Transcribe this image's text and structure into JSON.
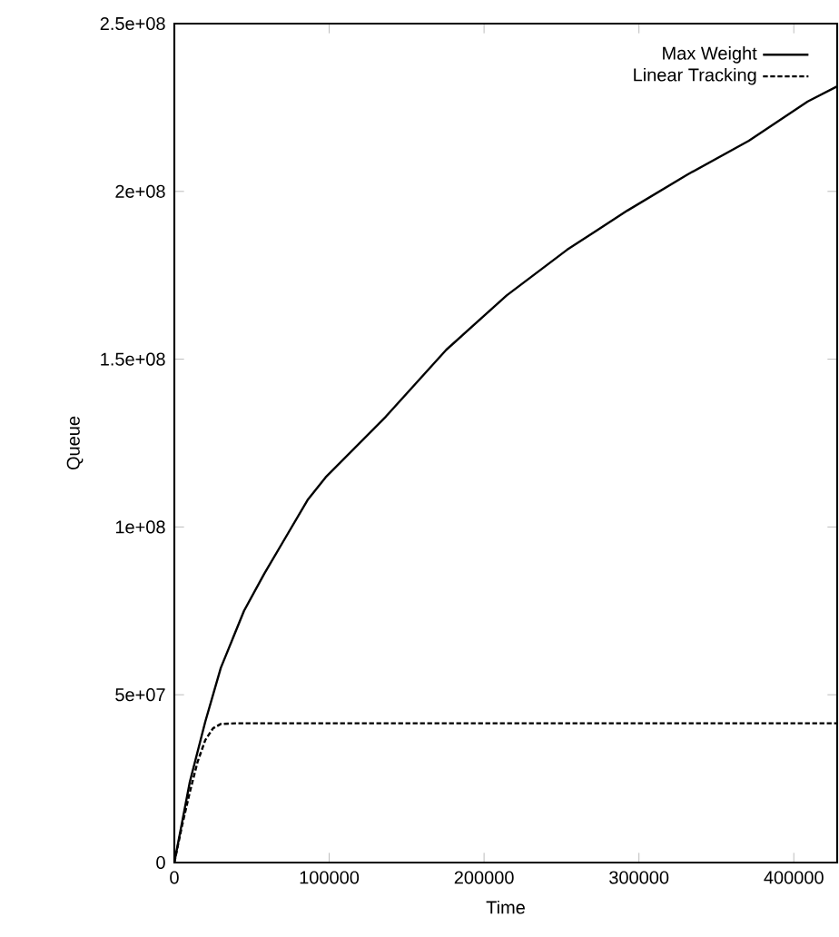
{
  "chart_data": {
    "type": "line",
    "xlabel": "Time",
    "ylabel": "Queue",
    "xlim": [
      0,
      428000
    ],
    "ylim": [
      0,
      250000000
    ],
    "xticks": [
      0,
      100000,
      200000,
      300000,
      400000
    ],
    "yticks": [
      0,
      {
        "value": 50000000,
        "label": "5e+07"
      },
      {
        "value": 100000000,
        "label": "1e+08"
      },
      {
        "value": 150000000,
        "label": "1.5e+08"
      },
      {
        "value": 200000000,
        "label": "2e+08"
      },
      {
        "value": 250000000,
        "label": "2.5e+08"
      }
    ],
    "legend": "top right",
    "grid": false,
    "series": [
      {
        "name": "Max Weight",
        "color": "#000000",
        "line_style": "solid",
        "x": [
          0,
          5000,
          10000,
          20000,
          30000,
          45000,
          58000,
          72000,
          86000,
          97700,
          136600,
          175600,
          214600,
          253600,
          292600,
          331600,
          371000,
          409000,
          428000
        ],
        "values": [
          0,
          12000000,
          24000000,
          42000000,
          58000000,
          75000000,
          86000000,
          97000000,
          108000000,
          114800000,
          132900000,
          152800000,
          169000000,
          182600000,
          194300000,
          205100000,
          215100000,
          226800000,
          231300000
        ]
      },
      {
        "name": "Linear Tracking",
        "color": "#000000",
        "line_style": "dashed",
        "x": [
          0,
          5000,
          10000,
          15000,
          20000,
          25000,
          30000,
          40000,
          100000,
          200000,
          300000,
          428000
        ],
        "values": [
          0,
          11000000,
          21000000,
          30000000,
          36500000,
          40000000,
          41300000,
          41500000,
          41500000,
          41500000,
          41500000,
          41500000
        ]
      }
    ]
  }
}
